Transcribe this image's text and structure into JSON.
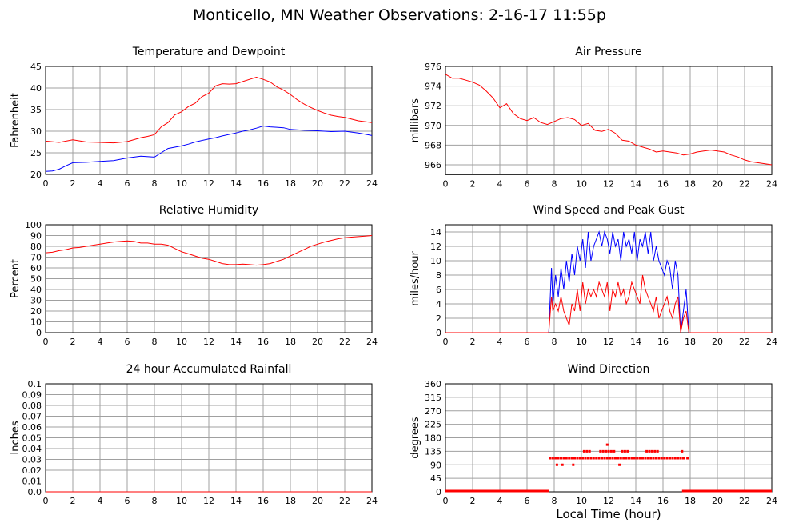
{
  "title": "Monticello, MN Weather Observations: 2-16-17 11:55p",
  "xlabel": "Local Time (hour)",
  "colors": {
    "red": "#ff0000",
    "blue": "#0000ff",
    "grid": "#a0a0a0"
  },
  "chart_data": [
    {
      "type": "line",
      "title": "Temperature and Dewpoint",
      "ylabel": "Fahrenheit",
      "xlim": [
        0,
        24
      ],
      "ylim": [
        20,
        45
      ],
      "xticks": [
        0,
        2,
        4,
        6,
        8,
        10,
        12,
        14,
        16,
        18,
        20,
        22,
        24
      ],
      "yticks": [
        20,
        25,
        30,
        35,
        40,
        45
      ],
      "ytick_labels": [
        "20",
        "25",
        "30",
        "35",
        "40",
        "45"
      ],
      "series": [
        {
          "color": "#ff0000",
          "x": [
            0,
            1,
            2,
            3,
            4,
            5,
            6,
            7,
            7.5,
            8,
            8.5,
            9,
            9.5,
            10,
            10.5,
            11,
            11.5,
            12,
            12.5,
            13,
            13.5,
            14,
            14.5,
            15,
            15.5,
            16,
            16.5,
            17,
            17.5,
            18,
            18.5,
            19,
            19.5,
            20,
            20.5,
            21,
            21.5,
            22,
            22.5,
            23,
            23.5,
            24
          ],
          "y": [
            27.7,
            27.4,
            28,
            27.5,
            27.4,
            27.3,
            27.6,
            28.5,
            28.8,
            29.2,
            31,
            32,
            33.8,
            34.5,
            35.7,
            36.5,
            38,
            38.8,
            40.5,
            41,
            40.9,
            41,
            41.5,
            42,
            42.5,
            42,
            41.4,
            40.3,
            39.5,
            38.5,
            37.3,
            36.3,
            35.5,
            34.8,
            34.2,
            33.7,
            33.4,
            33.2,
            32.8,
            32.4,
            32.2,
            32
          ]
        },
        {
          "color": "#0000ff",
          "x": [
            0,
            0.5,
            1,
            1.5,
            2,
            3,
            4,
            5,
            6,
            7,
            8,
            8.5,
            9,
            10,
            10.5,
            11,
            12,
            12.5,
            13,
            14,
            14.5,
            15,
            15.5,
            16,
            16.5,
            17,
            17.5,
            18,
            19,
            20,
            21,
            22,
            22.5,
            23,
            23.5,
            24
          ],
          "y": [
            20.7,
            20.8,
            21.2,
            22,
            22.7,
            22.8,
            23,
            23.2,
            23.8,
            24.2,
            24,
            25,
            26,
            26.6,
            27,
            27.5,
            28.2,
            28.5,
            28.9,
            29.6,
            30,
            30.3,
            30.7,
            31.2,
            31,
            30.9,
            30.8,
            30.4,
            30.2,
            30.1,
            29.9,
            30,
            29.8,
            29.6,
            29.3,
            29
          ]
        }
      ]
    },
    {
      "type": "line",
      "title": "Air Pressure",
      "ylabel": "millibars",
      "xlim": [
        0,
        24
      ],
      "ylim": [
        965,
        976
      ],
      "xticks": [
        0,
        2,
        4,
        6,
        8,
        10,
        12,
        14,
        16,
        18,
        20,
        22,
        24
      ],
      "yticks": [
        966,
        968,
        970,
        972,
        974,
        976
      ],
      "ytick_labels": [
        "966",
        "968",
        "970",
        "972",
        "974",
        "976"
      ],
      "series": [
        {
          "color": "#ff0000",
          "x": [
            0,
            0.5,
            1,
            1.5,
            2,
            2.5,
            3,
            3.5,
            4,
            4.5,
            5,
            5.5,
            6,
            6.5,
            7,
            7.5,
            8,
            8.5,
            9,
            9.5,
            10,
            10.5,
            11,
            11.5,
            12,
            12.5,
            13,
            13.5,
            14,
            14.5,
            15,
            15.5,
            16,
            16.5,
            17,
            17.5,
            18,
            18.5,
            19,
            19.5,
            20,
            20.5,
            21,
            21.5,
            22,
            22.5,
            23,
            23.5,
            24
          ],
          "y": [
            975.2,
            974.8,
            974.8,
            974.6,
            974.4,
            974.1,
            973.5,
            972.8,
            971.8,
            972.2,
            971.2,
            970.7,
            970.5,
            970.8,
            970.3,
            970.1,
            970.4,
            970.7,
            970.8,
            970.6,
            970,
            970.2,
            969.5,
            969.4,
            969.6,
            969.2,
            968.5,
            968.4,
            968,
            967.8,
            967.6,
            967.3,
            967.4,
            967.3,
            967.2,
            967,
            967.1,
            967.3,
            967.4,
            967.5,
            967.4,
            967.3,
            967,
            966.8,
            966.5,
            966.3,
            966.2,
            966.1,
            966
          ]
        }
      ]
    },
    {
      "type": "line",
      "title": "Relative Humidity",
      "ylabel": "Percent",
      "xlim": [
        0,
        24
      ],
      "ylim": [
        0,
        100
      ],
      "xticks": [
        0,
        2,
        4,
        6,
        8,
        10,
        12,
        14,
        16,
        18,
        20,
        22,
        24
      ],
      "yticks": [
        0,
        10,
        20,
        30,
        40,
        50,
        60,
        70,
        80,
        90,
        100
      ],
      "ytick_labels": [
        "0",
        "10",
        "20",
        "30",
        "40",
        "50",
        "60",
        "70",
        "80",
        "90",
        "100"
      ],
      "series": [
        {
          "color": "#ff0000",
          "x": [
            0,
            0.5,
            1,
            1.5,
            2,
            2.5,
            3,
            3.5,
            4,
            4.5,
            5,
            5.5,
            6,
            6.5,
            7,
            7.5,
            8,
            8.5,
            9,
            9.5,
            10,
            10.5,
            11,
            11.5,
            12,
            12.5,
            13,
            13.5,
            14,
            14.5,
            15,
            15.5,
            16,
            16.5,
            17,
            17.5,
            18,
            18.5,
            19,
            19.5,
            20,
            20.5,
            21,
            21.5,
            22,
            22.5,
            23,
            23.5,
            24
          ],
          "y": [
            74,
            74.5,
            76,
            77,
            78.5,
            79,
            80,
            81,
            82,
            83,
            84,
            84.5,
            85,
            84.5,
            83,
            83,
            82,
            82,
            81,
            78,
            75,
            73,
            71,
            69,
            68,
            66,
            64,
            63,
            63,
            63.5,
            63,
            62.5,
            63,
            64,
            66,
            68,
            71,
            74,
            77,
            80,
            82,
            84,
            85.5,
            87,
            88,
            88.5,
            89,
            89.5,
            90
          ]
        }
      ]
    },
    {
      "type": "line",
      "title": "Wind Speed and Peak Gust",
      "ylabel": "miles/hour",
      "xlim": [
        0,
        24
      ],
      "ylim": [
        0,
        15
      ],
      "xticks": [
        0,
        2,
        4,
        6,
        8,
        10,
        12,
        14,
        16,
        18,
        20,
        22,
        24
      ],
      "yticks": [
        0,
        2,
        4,
        6,
        8,
        10,
        12,
        14
      ],
      "ytick_labels": [
        "0",
        "2",
        "4",
        "6",
        "8",
        "10",
        "12",
        "14"
      ],
      "series": [
        {
          "color": "#0000ff",
          "x": [
            0,
            7.6,
            7.8,
            7.9,
            8.1,
            8.3,
            8.5,
            8.7,
            8.9,
            9.1,
            9.3,
            9.5,
            9.7,
            9.9,
            10.1,
            10.3,
            10.5,
            10.7,
            10.9,
            11.1,
            11.3,
            11.5,
            11.7,
            11.9,
            12.1,
            12.3,
            12.5,
            12.7,
            12.9,
            13.1,
            13.3,
            13.5,
            13.7,
            13.9,
            14.1,
            14.3,
            14.5,
            14.7,
            14.9,
            15.1,
            15.3,
            15.5,
            15.7,
            15.9,
            16.1,
            16.3,
            16.5,
            16.7,
            16.9,
            17.1,
            17.3,
            17.5,
            17.7,
            17.9,
            18.1,
            24
          ],
          "y": [
            0,
            0,
            9,
            4,
            8,
            5,
            9,
            6,
            10,
            7,
            11,
            8,
            12,
            10,
            13,
            9,
            14,
            10,
            12,
            13,
            14,
            12,
            14,
            13,
            11,
            14,
            12,
            13,
            10,
            14,
            12,
            13,
            11,
            14,
            10,
            13,
            12,
            14,
            11,
            14,
            10,
            12,
            10,
            9,
            8,
            10,
            9,
            6,
            10,
            8,
            0,
            3,
            6,
            0,
            0,
            0
          ]
        },
        {
          "color": "#ff0000",
          "x": [
            0,
            7.6,
            7.8,
            7.9,
            8.1,
            8.3,
            8.5,
            8.7,
            8.9,
            9.1,
            9.3,
            9.5,
            9.7,
            9.9,
            10.1,
            10.3,
            10.5,
            10.7,
            10.9,
            11.1,
            11.3,
            11.5,
            11.7,
            11.9,
            12.1,
            12.3,
            12.5,
            12.7,
            12.9,
            13.1,
            13.3,
            13.5,
            13.7,
            13.9,
            14.1,
            14.3,
            14.5,
            14.7,
            14.9,
            15.1,
            15.3,
            15.5,
            15.7,
            15.9,
            16.1,
            16.3,
            16.5,
            16.7,
            16.9,
            17.1,
            17.3,
            17.5,
            17.7,
            17.9,
            18.1,
            24
          ],
          "y": [
            0,
            0,
            5,
            3,
            4,
            3,
            5,
            3,
            2,
            1,
            4,
            3,
            6,
            3,
            7,
            4,
            6,
            5,
            6,
            5,
            7,
            6,
            5,
            7,
            3,
            6,
            5,
            7,
            5,
            6,
            4,
            5,
            7,
            6,
            5,
            4,
            8,
            6,
            5,
            4,
            3,
            5,
            2,
            3,
            4,
            5,
            3,
            2,
            4,
            5,
            0,
            2,
            3,
            0,
            0,
            0
          ]
        }
      ]
    },
    {
      "type": "line",
      "title": "24 hour Accumulated Rainfall",
      "ylabel": "Inches",
      "xlim": [
        0,
        24
      ],
      "ylim": [
        0,
        0.1
      ],
      "xticks": [
        0,
        2,
        4,
        6,
        8,
        10,
        12,
        14,
        16,
        18,
        20,
        22,
        24
      ],
      "yticks": [
        0,
        0.01,
        0.02,
        0.03,
        0.04,
        0.05,
        0.06,
        0.07,
        0.08,
        0.09,
        0.1
      ],
      "ytick_labels": [
        "0.0",
        "0.01",
        "0.02",
        "0.03",
        "0.04",
        "0.05",
        "0.06",
        "0.07",
        "0.08",
        "0.09",
        "0.1"
      ],
      "series": [
        {
          "color": "#ff0000",
          "x": [
            0,
            24
          ],
          "y": [
            0,
            0
          ]
        }
      ]
    },
    {
      "type": "scatter",
      "title": "Wind Direction",
      "ylabel": "degrees",
      "xlim": [
        0,
        24
      ],
      "ylim": [
        0,
        360
      ],
      "xticks": [
        0,
        2,
        4,
        6,
        8,
        10,
        12,
        14,
        16,
        18,
        20,
        22,
        24
      ],
      "yticks": [
        0,
        45,
        90,
        135,
        180,
        225,
        270,
        315,
        360
      ],
      "ytick_labels": [
        "0",
        "45",
        "90",
        "135",
        "180",
        "225",
        "270",
        "315",
        "360"
      ],
      "zero_bands": [
        [
          0,
          7.6
        ],
        [
          17.4,
          24
        ]
      ],
      "series": [
        {
          "color": "#ff0000",
          "x": [
            7.7,
            7.9,
            8.1,
            8.3,
            8.5,
            8.7,
            8.9,
            9.1,
            9.3,
            9.5,
            9.7,
            9.9,
            10.1,
            10.3,
            10.5,
            10.7,
            10.9,
            11.1,
            11.3,
            11.5,
            11.7,
            11.9,
            12.1,
            12.3,
            12.5,
            12.7,
            12.9,
            13.1,
            13.3,
            13.5,
            13.7,
            13.9,
            14.1,
            14.3,
            14.5,
            14.7,
            14.9,
            15.1,
            15.3,
            15.5,
            15.7,
            15.9,
            16.1,
            16.3,
            16.5,
            16.7,
            16.9,
            17.1,
            17.3,
            17.5,
            17.8,
            8.2,
            8.6,
            9.4,
            12.8,
            11.9,
            10.2,
            10.4,
            10.6,
            11.4,
            11.6,
            11.8,
            12.0,
            12.2,
            12.4,
            13.0,
            13.2,
            13.4,
            14.8,
            15.0,
            15.2,
            15.4,
            15.6,
            17.4
          ],
          "y": [
            112,
            112,
            112,
            112,
            112,
            112,
            112,
            112,
            112,
            112,
            112,
            112,
            112,
            112,
            112,
            112,
            112,
            112,
            112,
            112,
            112,
            112,
            112,
            112,
            112,
            112,
            112,
            112,
            112,
            112,
            112,
            112,
            112,
            112,
            112,
            112,
            112,
            112,
            112,
            112,
            112,
            112,
            112,
            112,
            112,
            112,
            112,
            112,
            112,
            112,
            112,
            90,
            90,
            90,
            90,
            157,
            135,
            135,
            135,
            135,
            135,
            135,
            135,
            135,
            135,
            135,
            135,
            135,
            135,
            135,
            135,
            135,
            135,
            135
          ]
        }
      ]
    }
  ]
}
